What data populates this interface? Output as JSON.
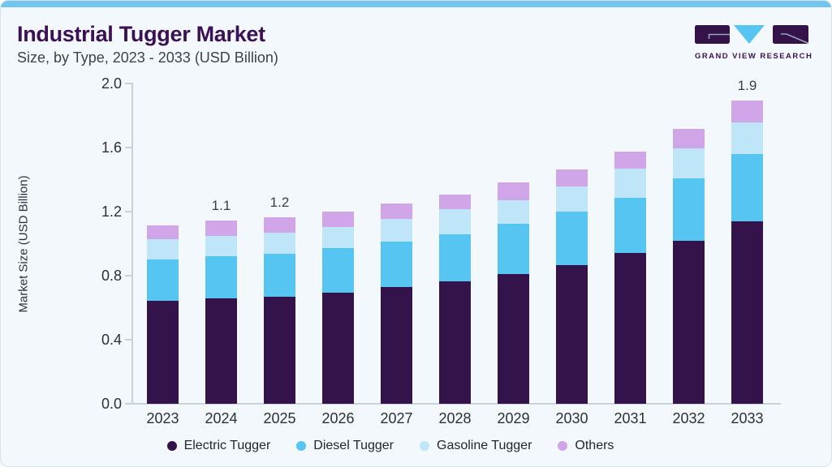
{
  "header": {
    "title": "Industrial Tugger Market",
    "subtitle": "Size, by Type, 2023 - 2033 (USD Billion)"
  },
  "logo": {
    "brand": "GRAND VIEW RESEARCH",
    "block_color": "#33134A",
    "triangle_color": "#56C5F2",
    "mark_line_color": "#9BA3B8"
  },
  "chart_data": {
    "type": "bar",
    "stacked": true,
    "title": "Industrial Tugger Market Size, by Type, 2023 - 2033 (USD Billion)",
    "xlabel": "",
    "ylabel": "Market Size (USD Billion)",
    "ylim": [
      0,
      2.0
    ],
    "ytick_labels": [
      "0.0",
      "0.4",
      "0.8",
      "1.2",
      "1.6",
      "2.0"
    ],
    "ytick_values": [
      0.0,
      0.4,
      0.8,
      1.2,
      1.6,
      2.0
    ],
    "grid": false,
    "legend_position": "bottom",
    "categories": [
      "2023",
      "2024",
      "2025",
      "2026",
      "2027",
      "2028",
      "2029",
      "2030",
      "2031",
      "2032",
      "2033"
    ],
    "series": [
      {
        "name": "Electric Tugger",
        "color": "#33134A",
        "values": [
          0.645,
          0.66,
          0.67,
          0.695,
          0.73,
          0.765,
          0.81,
          0.865,
          0.94,
          1.02,
          1.14
        ]
      },
      {
        "name": "Diesel Tugger",
        "color": "#56C5F2",
        "values": [
          0.255,
          0.26,
          0.268,
          0.275,
          0.283,
          0.295,
          0.315,
          0.335,
          0.348,
          0.386,
          0.419
        ]
      },
      {
        "name": "Gasoline Tugger",
        "color": "#BEE6F8",
        "values": [
          0.13,
          0.128,
          0.132,
          0.133,
          0.14,
          0.155,
          0.145,
          0.157,
          0.179,
          0.188,
          0.198
        ]
      },
      {
        "name": "Others",
        "color": "#D0A6E9",
        "values": [
          0.085,
          0.095,
          0.096,
          0.097,
          0.097,
          0.09,
          0.11,
          0.108,
          0.108,
          0.121,
          0.138
        ]
      }
    ],
    "bar_total_labels": [
      "",
      "1.1",
      "1.2",
      "",
      "",
      "",
      "",
      "",
      "",
      "",
      "1.9"
    ]
  }
}
